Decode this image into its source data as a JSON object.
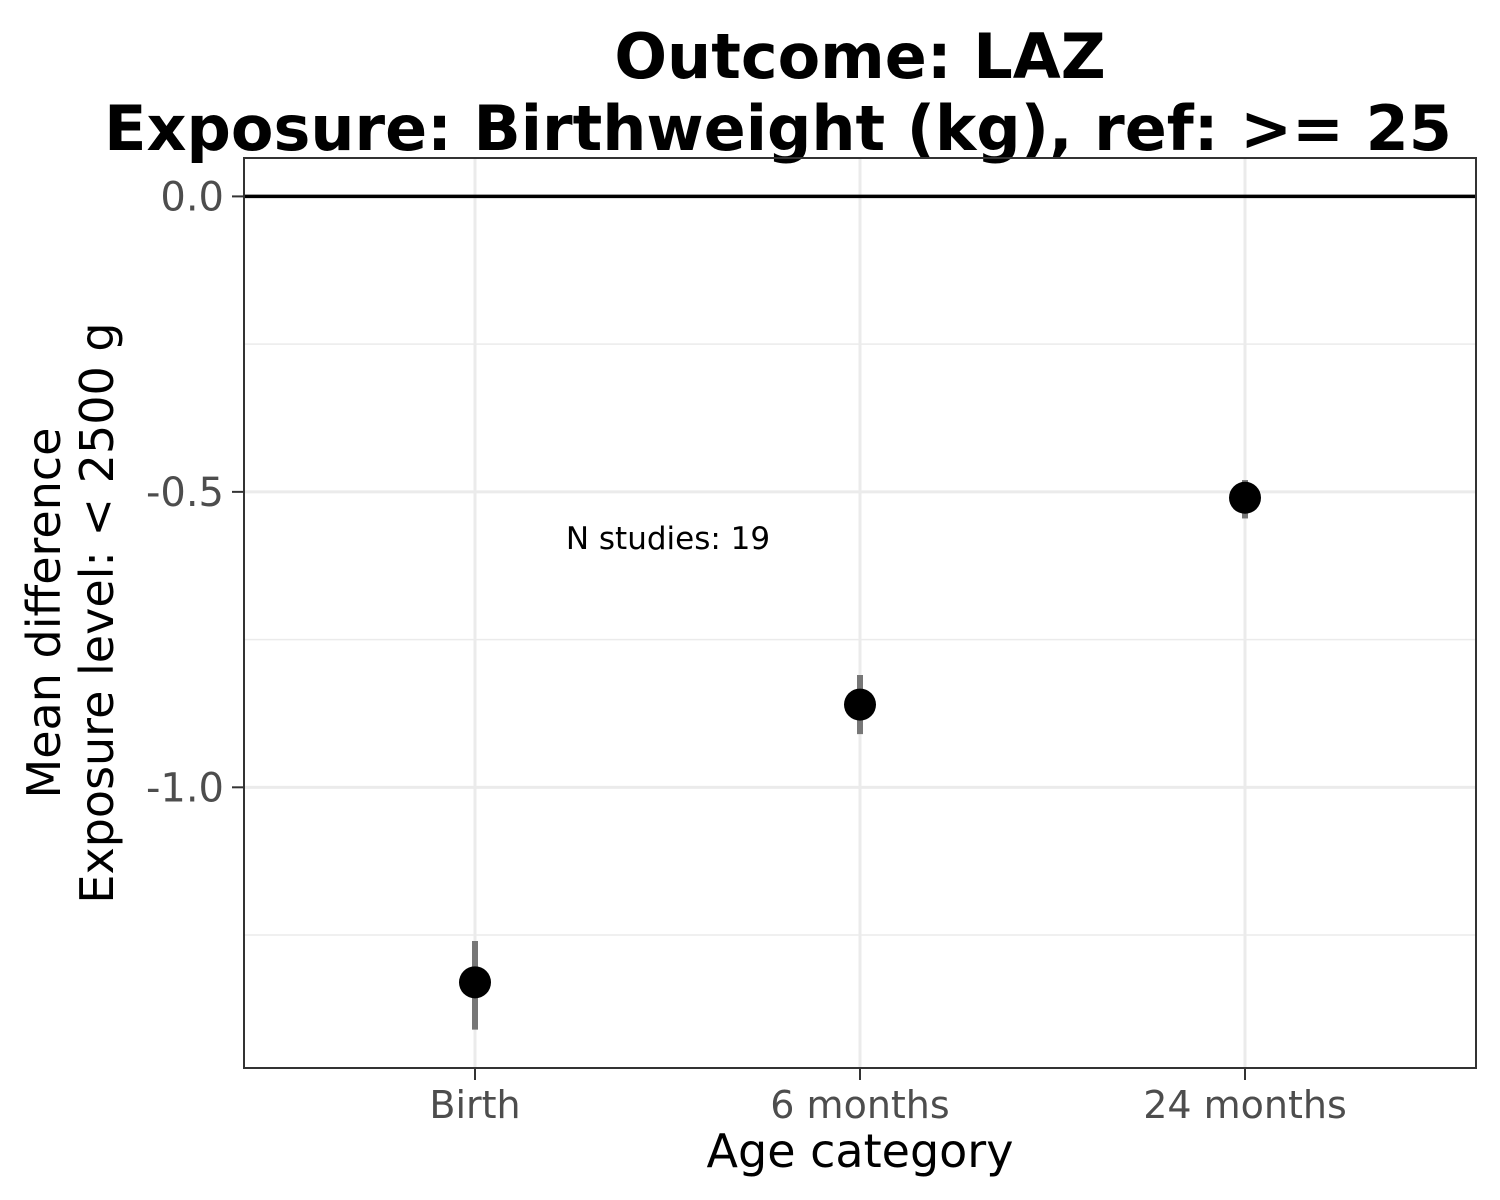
{
  "chart_data": {
    "type": "scatter",
    "title_lines": [
      "Outcome: LAZ",
      "Exposure: Birthweight (kg), ref: >= 25"
    ],
    "xlabel": "Age category",
    "ylabel_lines": [
      "Mean difference",
      "Exposure level: < 2500 g"
    ],
    "categories": [
      "Birth",
      "6 months",
      "24 months"
    ],
    "series": [
      {
        "values": [
          -1.33,
          -0.86,
          -0.51
        ],
        "ci_lower": [
          -1.41,
          -0.91,
          -0.545
        ],
        "ci_upper": [
          -1.26,
          -0.81,
          -0.48
        ]
      }
    ],
    "y_ticks": [
      0.0,
      -0.5,
      -1.0
    ],
    "y_tick_labels": [
      "0.0",
      "-0.5",
      "-1.0"
    ],
    "ylim": [
      -1.475,
      0.065
    ],
    "reference_line": 0.0,
    "annotation": {
      "text": "N studies: 19",
      "x_category": "Birth",
      "y": -0.58
    },
    "grid": true,
    "legend": "none",
    "colors": {
      "point": "#000000",
      "errorbar": "#777777",
      "grid": "#ebebeb",
      "reference_line": "#000000",
      "panel_border": "#333333"
    }
  }
}
